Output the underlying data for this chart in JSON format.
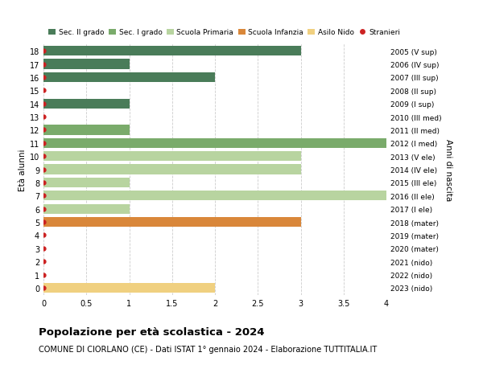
{
  "ages": [
    18,
    17,
    16,
    15,
    14,
    13,
    12,
    11,
    10,
    9,
    8,
    7,
    6,
    5,
    4,
    3,
    2,
    1,
    0
  ],
  "right_labels": [
    "2005 (V sup)",
    "2006 (IV sup)",
    "2007 (III sup)",
    "2008 (II sup)",
    "2009 (I sup)",
    "2010 (III med)",
    "2011 (II med)",
    "2012 (I med)",
    "2013 (V ele)",
    "2014 (IV ele)",
    "2015 (III ele)",
    "2016 (II ele)",
    "2017 (I ele)",
    "2018 (mater)",
    "2019 (mater)",
    "2020 (mater)",
    "2021 (nido)",
    "2022 (nido)",
    "2023 (nido)"
  ],
  "bar_values": [
    3,
    1,
    2,
    0,
    1,
    0,
    1,
    4,
    3,
    3,
    1,
    4,
    1,
    3,
    0,
    0,
    0,
    0,
    2
  ],
  "bar_colors": [
    "#4a7c59",
    "#4a7c59",
    "#4a7c59",
    "#4a7c59",
    "#4a7c59",
    "#7aab6b",
    "#7aab6b",
    "#7aab6b",
    "#b8d4a0",
    "#b8d4a0",
    "#b8d4a0",
    "#b8d4a0",
    "#b8d4a0",
    "#d9873a",
    "#d9873a",
    "#d9873a",
    "#f0d080",
    "#f0d080",
    "#f0d080"
  ],
  "stranieri_marker_ages": [
    18,
    17,
    16,
    15,
    14,
    13,
    12,
    11,
    10,
    9,
    8,
    7,
    6,
    5,
    4,
    3,
    2,
    1,
    0
  ],
  "legend_labels": [
    "Sec. II grado",
    "Sec. I grado",
    "Scuola Primaria",
    "Scuola Infanzia",
    "Asilo Nido",
    "Stranieri"
  ],
  "legend_colors": [
    "#4a7c59",
    "#7aab6b",
    "#b8d4a0",
    "#d9873a",
    "#f0d080",
    "#cc2222"
  ],
  "title_bold": "Popolazione per età scolastica - 2024",
  "subtitle": "COMUNE DI CIORLANO (CE) - Dati ISTAT 1° gennaio 2024 - Elaborazione TUTTITALIA.IT",
  "ylabel": "Età alunni",
  "right_ylabel": "Anni di nascita",
  "xlim": [
    0,
    4.0
  ],
  "xticks": [
    0,
    0.5,
    1.0,
    1.5,
    2.0,
    2.5,
    3.0,
    3.5,
    4.0
  ],
  "bg_color": "#ffffff",
  "grid_color": "#cccccc",
  "bar_height": 0.75,
  "dot_color": "#cc2222"
}
